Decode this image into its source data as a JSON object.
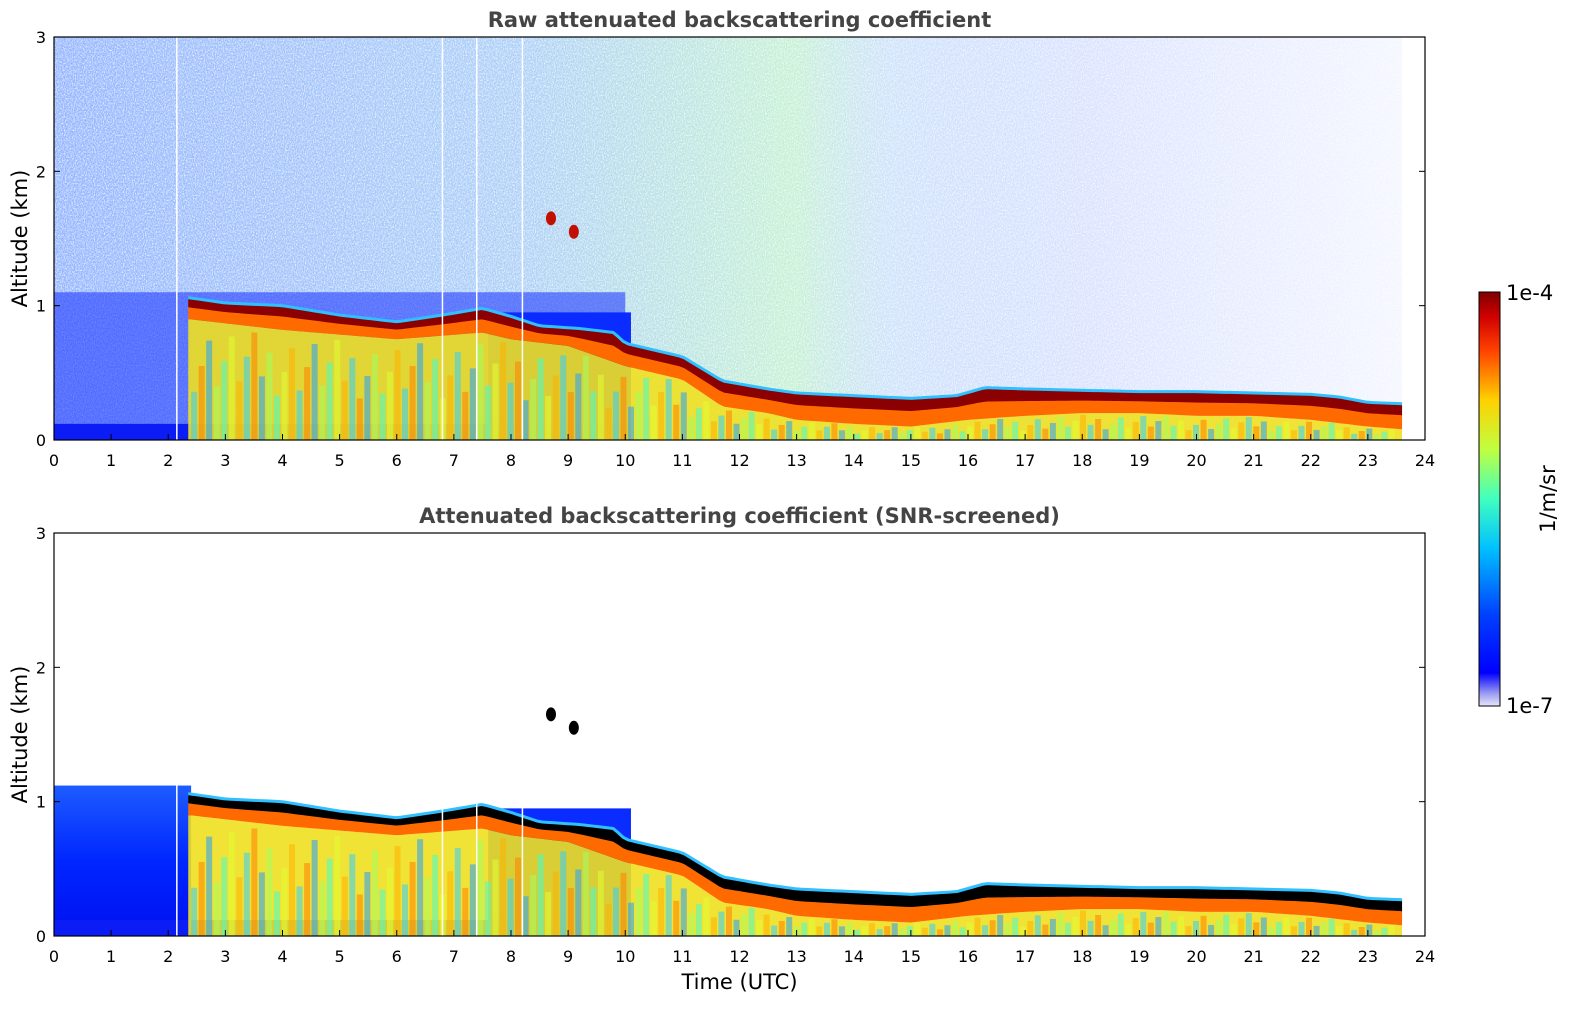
{
  "chart_data": [
    {
      "type": "heatmap",
      "title": "Raw attenuated backscattering coefficient",
      "xlabel": "",
      "ylabel": "Altitude (km)",
      "xlim": [
        0,
        24
      ],
      "ylim": [
        0,
        3
      ],
      "xticks": [
        "0",
        "1",
        "2",
        "3",
        "4",
        "5",
        "6",
        "7",
        "8",
        "9",
        "10",
        "11",
        "12",
        "13",
        "14",
        "15",
        "16",
        "17",
        "18",
        "19",
        "20",
        "21",
        "22",
        "23",
        "24"
      ],
      "yticks": [
        "0",
        "1",
        "2",
        "3"
      ],
      "layer_top_km": [
        [
          2.35,
          1.06
        ],
        [
          3,
          1.02
        ],
        [
          4,
          1.0
        ],
        [
          5,
          0.93
        ],
        [
          6,
          0.88
        ],
        [
          6.8,
          0.93
        ],
        [
          7.5,
          0.98
        ],
        [
          8,
          0.92
        ],
        [
          8.5,
          0.85
        ],
        [
          9.2,
          0.83
        ],
        [
          9.8,
          0.8
        ],
        [
          10,
          0.72
        ],
        [
          11,
          0.62
        ],
        [
          11.7,
          0.44
        ],
        [
          12.5,
          0.38
        ],
        [
          13,
          0.35
        ],
        [
          14,
          0.33
        ],
        [
          15,
          0.31
        ],
        [
          15.8,
          0.33
        ],
        [
          16.3,
          0.39
        ],
        [
          17,
          0.38
        ],
        [
          18,
          0.37
        ],
        [
          19,
          0.36
        ],
        [
          20,
          0.36
        ],
        [
          21,
          0.35
        ],
        [
          22,
          0.34
        ],
        [
          22.5,
          0.32
        ],
        [
          23,
          0.28
        ],
        [
          23.6,
          0.27
        ]
      ],
      "layer_bottom_km": [
        [
          2.35,
          0.9
        ],
        [
          4,
          0.82
        ],
        [
          6,
          0.75
        ],
        [
          7.5,
          0.8
        ],
        [
          8,
          0.75
        ],
        [
          9,
          0.7
        ],
        [
          10,
          0.55
        ],
        [
          11,
          0.45
        ],
        [
          11.7,
          0.25
        ],
        [
          12.5,
          0.2
        ],
        [
          13,
          0.15
        ],
        [
          14,
          0.12
        ],
        [
          15,
          0.1
        ],
        [
          16,
          0.15
        ],
        [
          17,
          0.18
        ],
        [
          18,
          0.2
        ],
        [
          19,
          0.2
        ],
        [
          20,
          0.18
        ],
        [
          21,
          0.18
        ],
        [
          22,
          0.15
        ],
        [
          23,
          0.1
        ],
        [
          23.6,
          0.08
        ]
      ],
      "aerosol_patches": [
        {
          "t": 8.7,
          "z": 1.65
        },
        {
          "t": 9.1,
          "z": 1.55
        }
      ]
    },
    {
      "type": "heatmap",
      "title": "Attenuated backscattering coefficient (SNR-screened)",
      "xlabel": "Time (UTC)",
      "ylabel": "Altitude (km)",
      "xlim": [
        0,
        24
      ],
      "ylim": [
        0,
        3
      ],
      "xticks": [
        "0",
        "1",
        "2",
        "3",
        "4",
        "5",
        "6",
        "7",
        "8",
        "9",
        "10",
        "11",
        "12",
        "13",
        "14",
        "15",
        "16",
        "17",
        "18",
        "19",
        "20",
        "21",
        "22",
        "23",
        "24"
      ],
      "yticks": [
        "0",
        "1",
        "2",
        "3"
      ],
      "layer_top_km": [
        [
          2.35,
          1.06
        ],
        [
          3,
          1.02
        ],
        [
          4,
          1.0
        ],
        [
          5,
          0.93
        ],
        [
          6,
          0.88
        ],
        [
          6.8,
          0.93
        ],
        [
          7.5,
          0.98
        ],
        [
          8,
          0.92
        ],
        [
          8.5,
          0.85
        ],
        [
          9.2,
          0.83
        ],
        [
          9.8,
          0.8
        ],
        [
          10,
          0.72
        ],
        [
          11,
          0.62
        ],
        [
          11.7,
          0.44
        ],
        [
          12.5,
          0.38
        ],
        [
          13,
          0.35
        ],
        [
          14,
          0.33
        ],
        [
          15,
          0.31
        ],
        [
          15.8,
          0.33
        ],
        [
          16.3,
          0.39
        ],
        [
          17,
          0.38
        ],
        [
          18,
          0.37
        ],
        [
          19,
          0.36
        ],
        [
          20,
          0.36
        ],
        [
          21,
          0.35
        ],
        [
          22,
          0.34
        ],
        [
          22.5,
          0.32
        ],
        [
          23,
          0.28
        ],
        [
          23.6,
          0.27
        ]
      ],
      "layer_bottom_km": [
        [
          2.35,
          0.9
        ],
        [
          4,
          0.82
        ],
        [
          6,
          0.75
        ],
        [
          7.5,
          0.8
        ],
        [
          8,
          0.75
        ],
        [
          9,
          0.7
        ],
        [
          10,
          0.55
        ],
        [
          11,
          0.45
        ],
        [
          11.7,
          0.25
        ],
        [
          12.5,
          0.2
        ],
        [
          13,
          0.15
        ],
        [
          14,
          0.12
        ],
        [
          15,
          0.1
        ],
        [
          16,
          0.15
        ],
        [
          17,
          0.18
        ],
        [
          18,
          0.2
        ],
        [
          19,
          0.2
        ],
        [
          20,
          0.18
        ],
        [
          21,
          0.18
        ],
        [
          22,
          0.15
        ],
        [
          23,
          0.1
        ],
        [
          23.6,
          0.08
        ]
      ],
      "aerosol_patches": [
        {
          "t": 8.7,
          "z": 1.65
        },
        {
          "t": 9.1,
          "z": 1.55
        }
      ]
    }
  ],
  "colorbar": {
    "max_label": "1e-4",
    "min_label": "1e-7",
    "unit_label": "1/m/sr"
  }
}
